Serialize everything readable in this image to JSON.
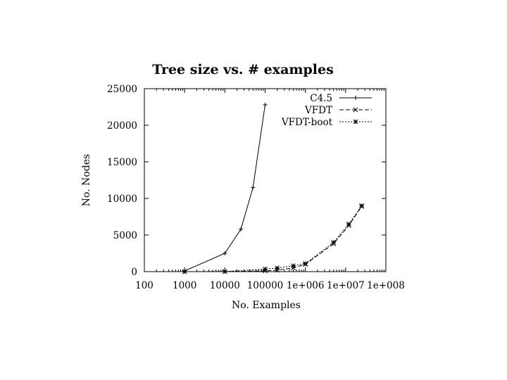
{
  "chart_data": {
    "type": "line",
    "title": "Tree size vs. # examples",
    "xlabel": "No. Examples",
    "ylabel": "No. Nodes",
    "x_scale": "log",
    "xlim": [
      100,
      100000000
    ],
    "ylim": [
      0,
      25000
    ],
    "x_ticks": [
      100,
      1000,
      10000,
      100000,
      1000000,
      10000000,
      100000000
    ],
    "x_tick_labels": [
      "100",
      "1000",
      "10000",
      "100000",
      "1e+006",
      "1e+007",
      "1e+008"
    ],
    "y_ticks": [
      0,
      5000,
      10000,
      15000,
      20000,
      25000
    ],
    "y_tick_labels": [
      "0",
      "5000",
      "10000",
      "15000",
      "20000",
      "25000"
    ],
    "grid": false,
    "legend_position": "top-right",
    "series": [
      {
        "name": "C4.5",
        "dash": "solid",
        "x": [
          1000,
          10000,
          25000,
          50000,
          100000
        ],
        "y": [
          100,
          2500,
          5800,
          11500,
          22800
        ]
      },
      {
        "name": "VFDT",
        "dash": "dashed",
        "x": [
          1000,
          10000,
          100000,
          200000,
          500000,
          1000000,
          5000000,
          12000000,
          25000000
        ],
        "y": [
          0,
          10,
          100,
          200,
          500,
          1000,
          3800,
          6300,
          8900
        ]
      },
      {
        "name": "VFDT-boot",
        "dash": "dotted",
        "x": [
          1000,
          10000,
          100000,
          200000,
          500000,
          1000000,
          5000000,
          12000000,
          25000000
        ],
        "y": [
          0,
          15,
          350,
          500,
          800,
          1100,
          4000,
          6500,
          9000
        ]
      }
    ]
  }
}
